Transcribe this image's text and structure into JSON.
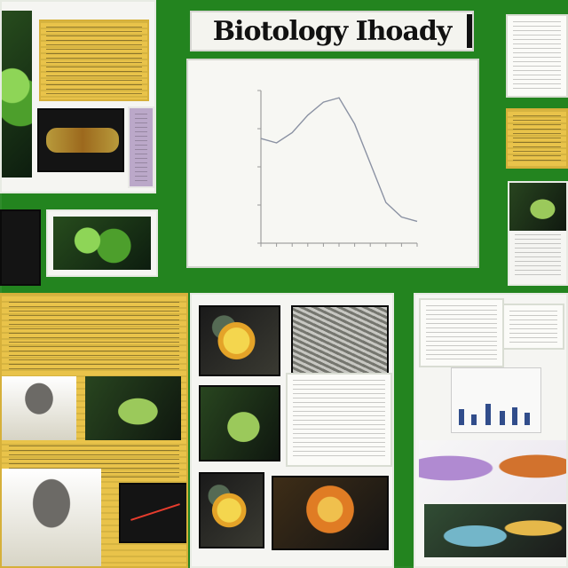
{
  "poster": {
    "title": "Biotology Ihoady"
  },
  "chart_data": {
    "type": "line",
    "x": [
      0,
      1,
      2,
      3,
      4,
      5,
      6,
      7,
      8,
      9,
      10
    ],
    "values": [
      0.72,
      0.69,
      0.76,
      0.88,
      0.97,
      1.0,
      0.82,
      0.55,
      0.28,
      0.18,
      0.15
    ],
    "title": "",
    "xlabel": "",
    "ylabel": "",
    "ylim": [
      0,
      1.05
    ]
  },
  "colors": {
    "background": "#23841f",
    "yellow_panel": "#e9c34a",
    "chart_line": "#8b92a3",
    "bar_blue": "#314d8b"
  }
}
